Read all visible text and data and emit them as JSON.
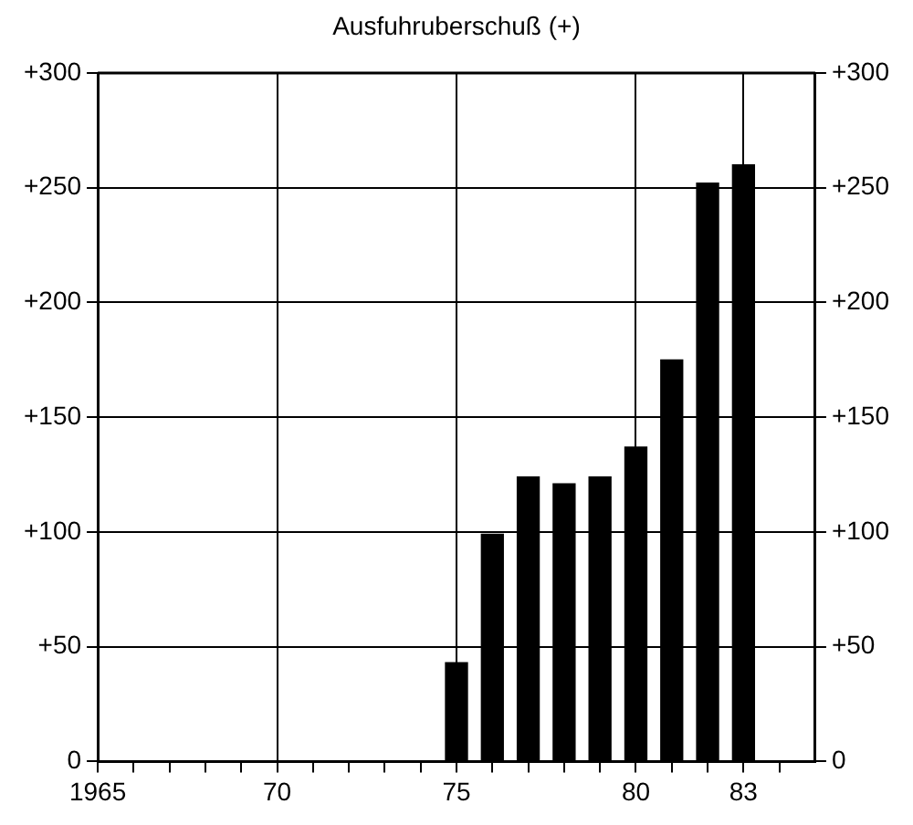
{
  "chart_data": {
    "type": "bar",
    "title": "Ausfuhruberschuß (+)",
    "x": [
      1975,
      1976,
      1977,
      1978,
      1979,
      1980,
      1981,
      1982,
      1983
    ],
    "values": [
      43,
      99,
      124,
      121,
      124,
      137,
      175,
      252,
      260
    ],
    "color": "#000000",
    "xlim": [
      1965,
      1985
    ],
    "xticks": [
      {
        "value": 1965,
        "label": "1965"
      },
      {
        "value": 1966,
        "label": null
      },
      {
        "value": 1967,
        "label": null
      },
      {
        "value": 1968,
        "label": null
      },
      {
        "value": 1969,
        "label": null
      },
      {
        "value": 1970,
        "label": "70"
      },
      {
        "value": 1971,
        "label": null
      },
      {
        "value": 1972,
        "label": null
      },
      {
        "value": 1973,
        "label": null
      },
      {
        "value": 1974,
        "label": null
      },
      {
        "value": 1975,
        "label": "75"
      },
      {
        "value": 1976,
        "label": null
      },
      {
        "value": 1977,
        "label": null
      },
      {
        "value": 1978,
        "label": null
      },
      {
        "value": 1979,
        "label": null
      },
      {
        "value": 1980,
        "label": "80"
      },
      {
        "value": 1981,
        "label": null
      },
      {
        "value": 1982,
        "label": null
      },
      {
        "value": 1983,
        "label": "83"
      },
      {
        "value": 1984,
        "label": null
      }
    ],
    "ylim": [
      0,
      300
    ],
    "yticks": [
      0,
      {
        "value": 50,
        "label": "+50"
      },
      {
        "value": 100,
        "label": "+100"
      },
      {
        "value": 150,
        "label": "+150"
      },
      {
        "value": 200,
        "label": "+200"
      },
      {
        "value": 250,
        "label": "+250"
      },
      {
        "value": 300,
        "label": "+300"
      }
    ],
    "y2lim": [
      0,
      300
    ],
    "y2ticks": [
      0,
      {
        "value": 50,
        "label": "+50"
      },
      {
        "value": 100,
        "label": "+100"
      },
      {
        "value": 150,
        "label": "+150"
      },
      {
        "value": 200,
        "label": "+200"
      },
      {
        "value": 250,
        "label": "+250"
      },
      {
        "value": 300,
        "label": "+300"
      }
    ],
    "grid": true,
    "legend": false
  }
}
